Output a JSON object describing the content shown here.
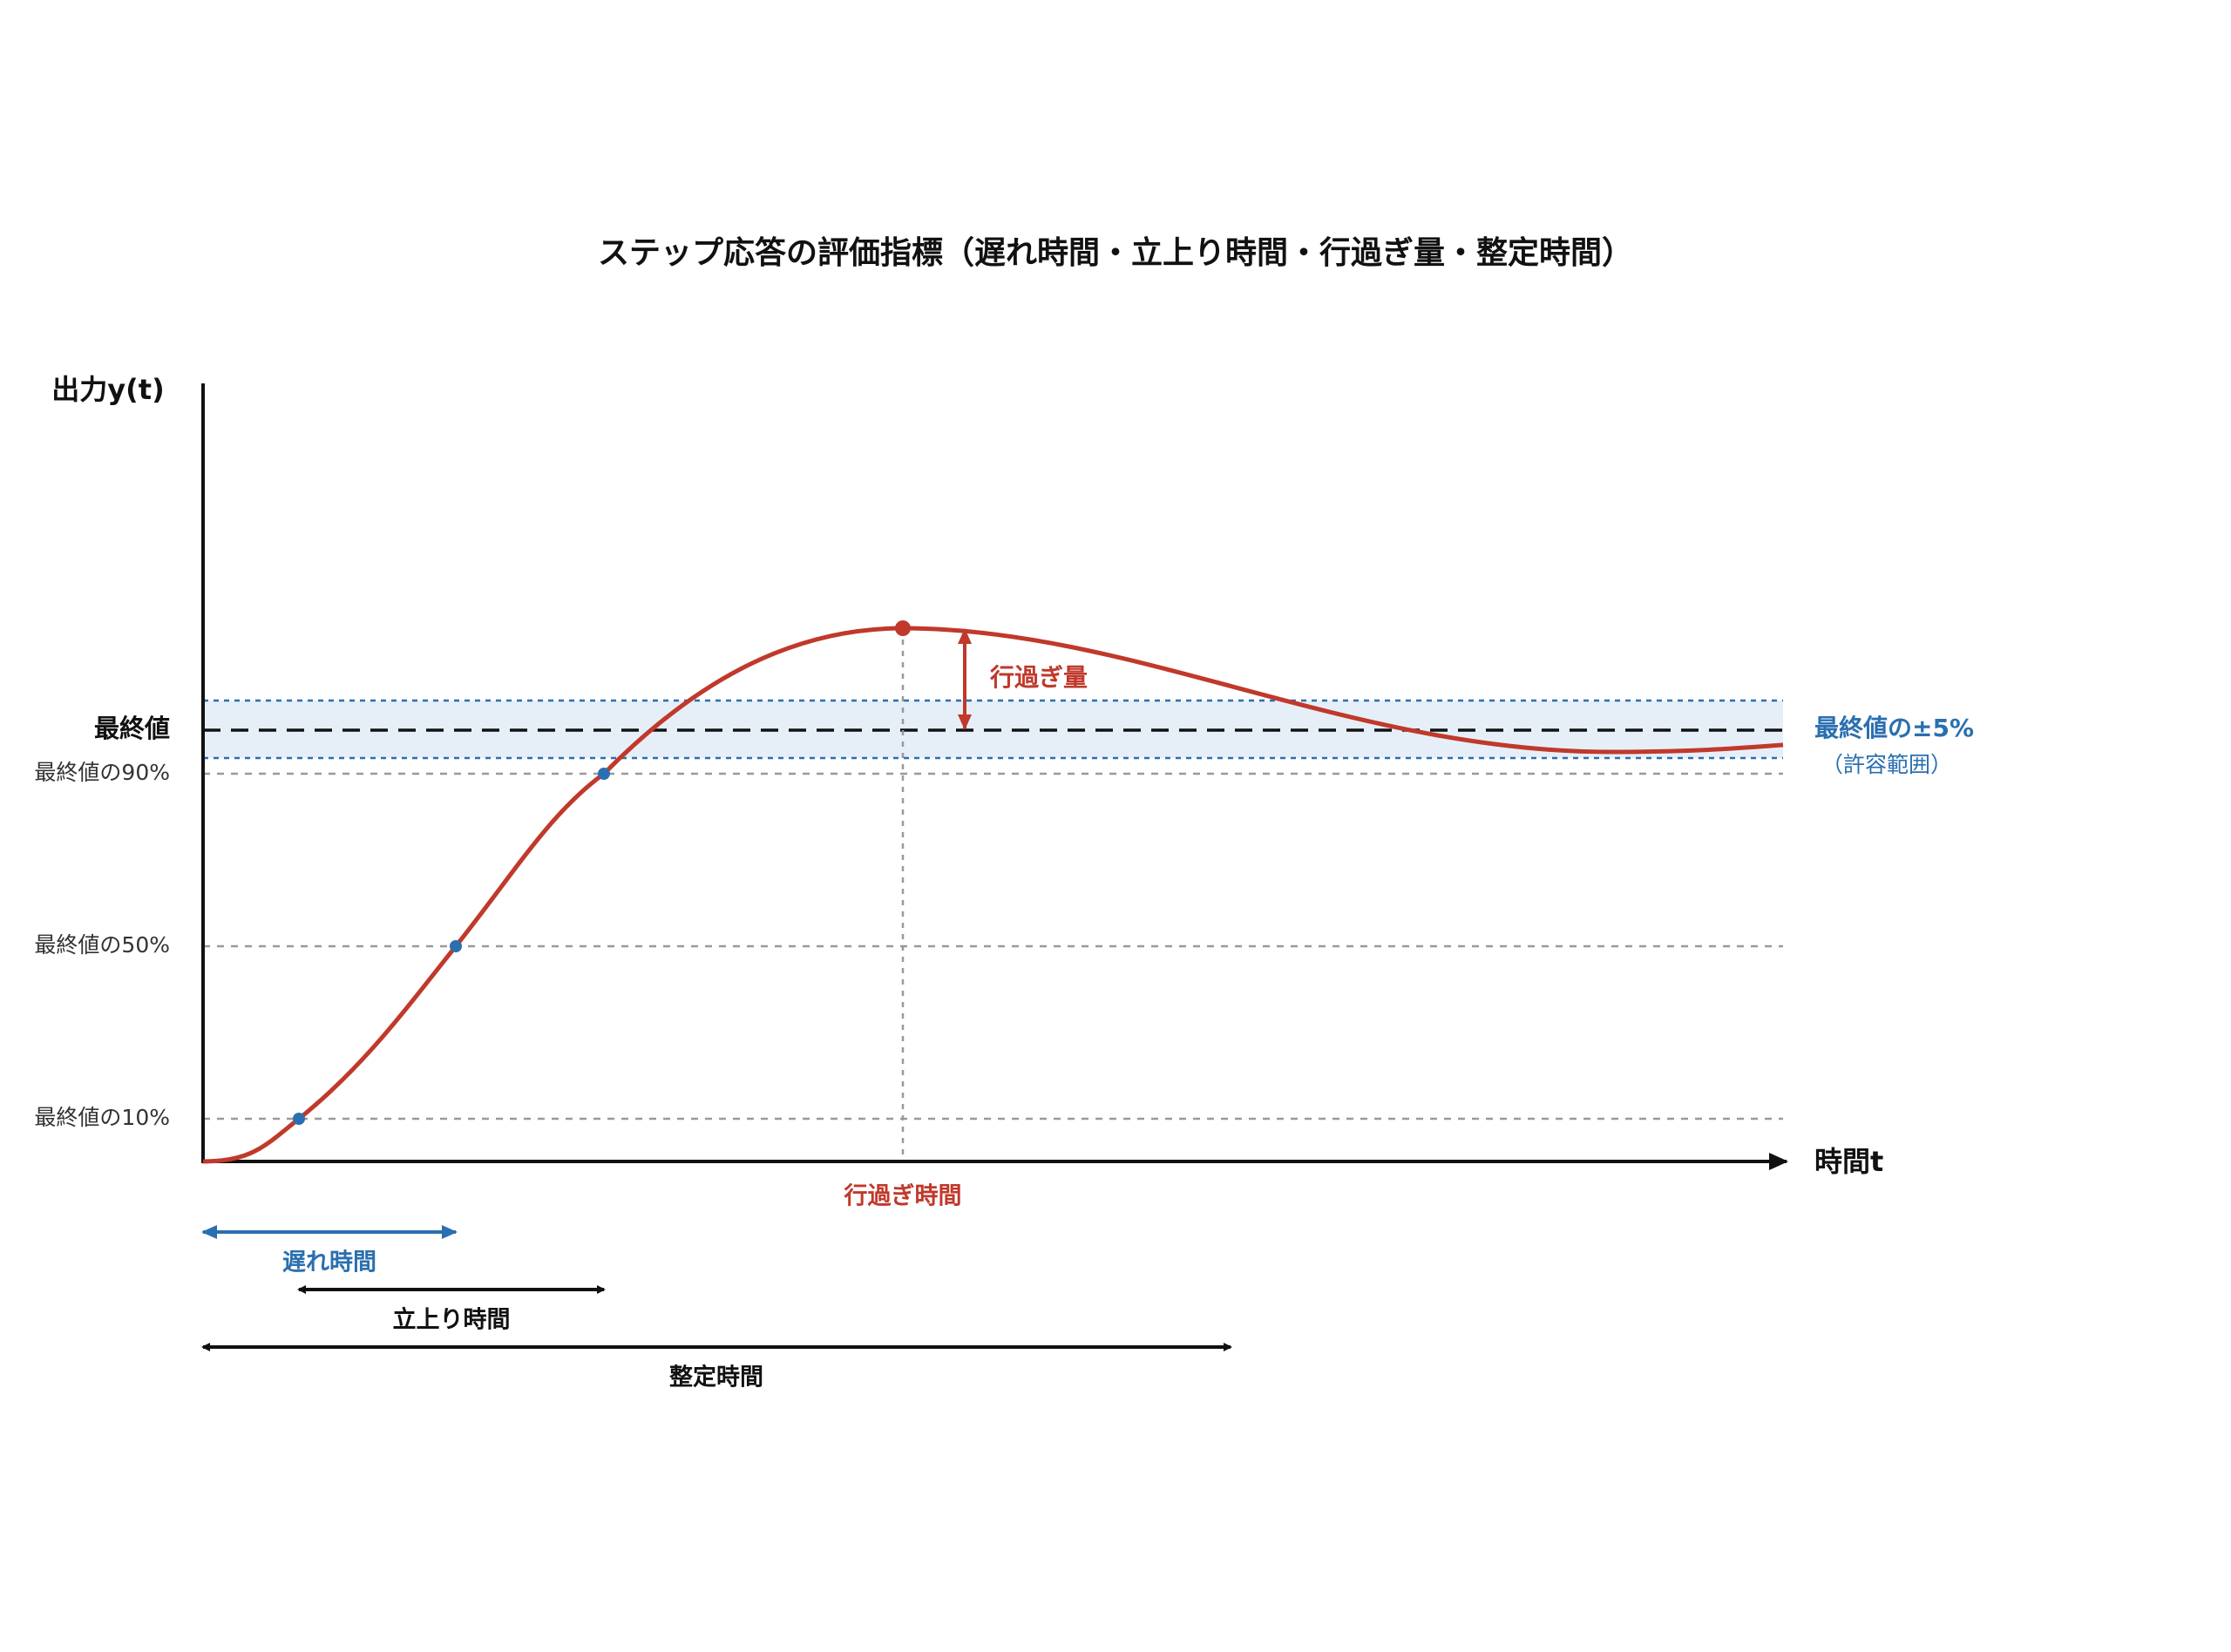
{
  "title": "ステップ応答の評価指標（遅れ時間・立上り時間・行過ぎ量・整定時間）",
  "axes": {
    "y_label": "出力y(t)",
    "x_label": "時間t"
  },
  "levels": {
    "final": "最終値",
    "p90": "最終値の90%",
    "p50": "最終値の50%",
    "p10": "最終値の10%"
  },
  "band": {
    "label": "最終値の±5%",
    "note": "（許容範囲）"
  },
  "annotations": {
    "overshoot": "行過ぎ量",
    "peak_time": "行過ぎ時間",
    "delay_time": "遅れ時間",
    "rise_time": "立上り時間",
    "settling_time": "整定時間"
  }
}
